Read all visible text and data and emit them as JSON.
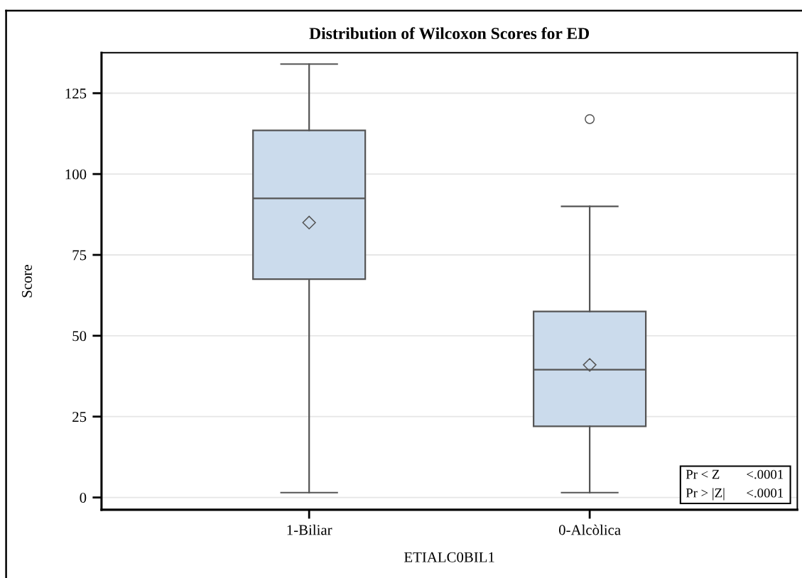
{
  "chart_data": {
    "type": "box",
    "title": "Distribution of Wilcoxon Scores for ED",
    "xlabel": "ETIALC0BIL1",
    "ylabel": "Score",
    "categories": [
      "1-Biliar",
      "0-Alcòlica"
    ],
    "series": [
      {
        "color": "#cbdbec",
        "boxes": [
          {
            "low": 1.5,
            "q1": 67.5,
            "median": 92.5,
            "q3": 113.5,
            "high": 134,
            "mean": 85
          },
          {
            "low": 1.5,
            "q1": 22,
            "median": 39.5,
            "q3": 57.5,
            "high": 90,
            "mean": 41,
            "outliers": [
              117
            ]
          }
        ]
      }
    ],
    "ylim": [
      -3.8,
      137.5
    ],
    "yticks": [
      0,
      25,
      50,
      75,
      100,
      125
    ],
    "grid": "y",
    "annotations": [
      "Pr < Z",
      "<.0001",
      "Pr > |Z|",
      "<.0001"
    ]
  }
}
